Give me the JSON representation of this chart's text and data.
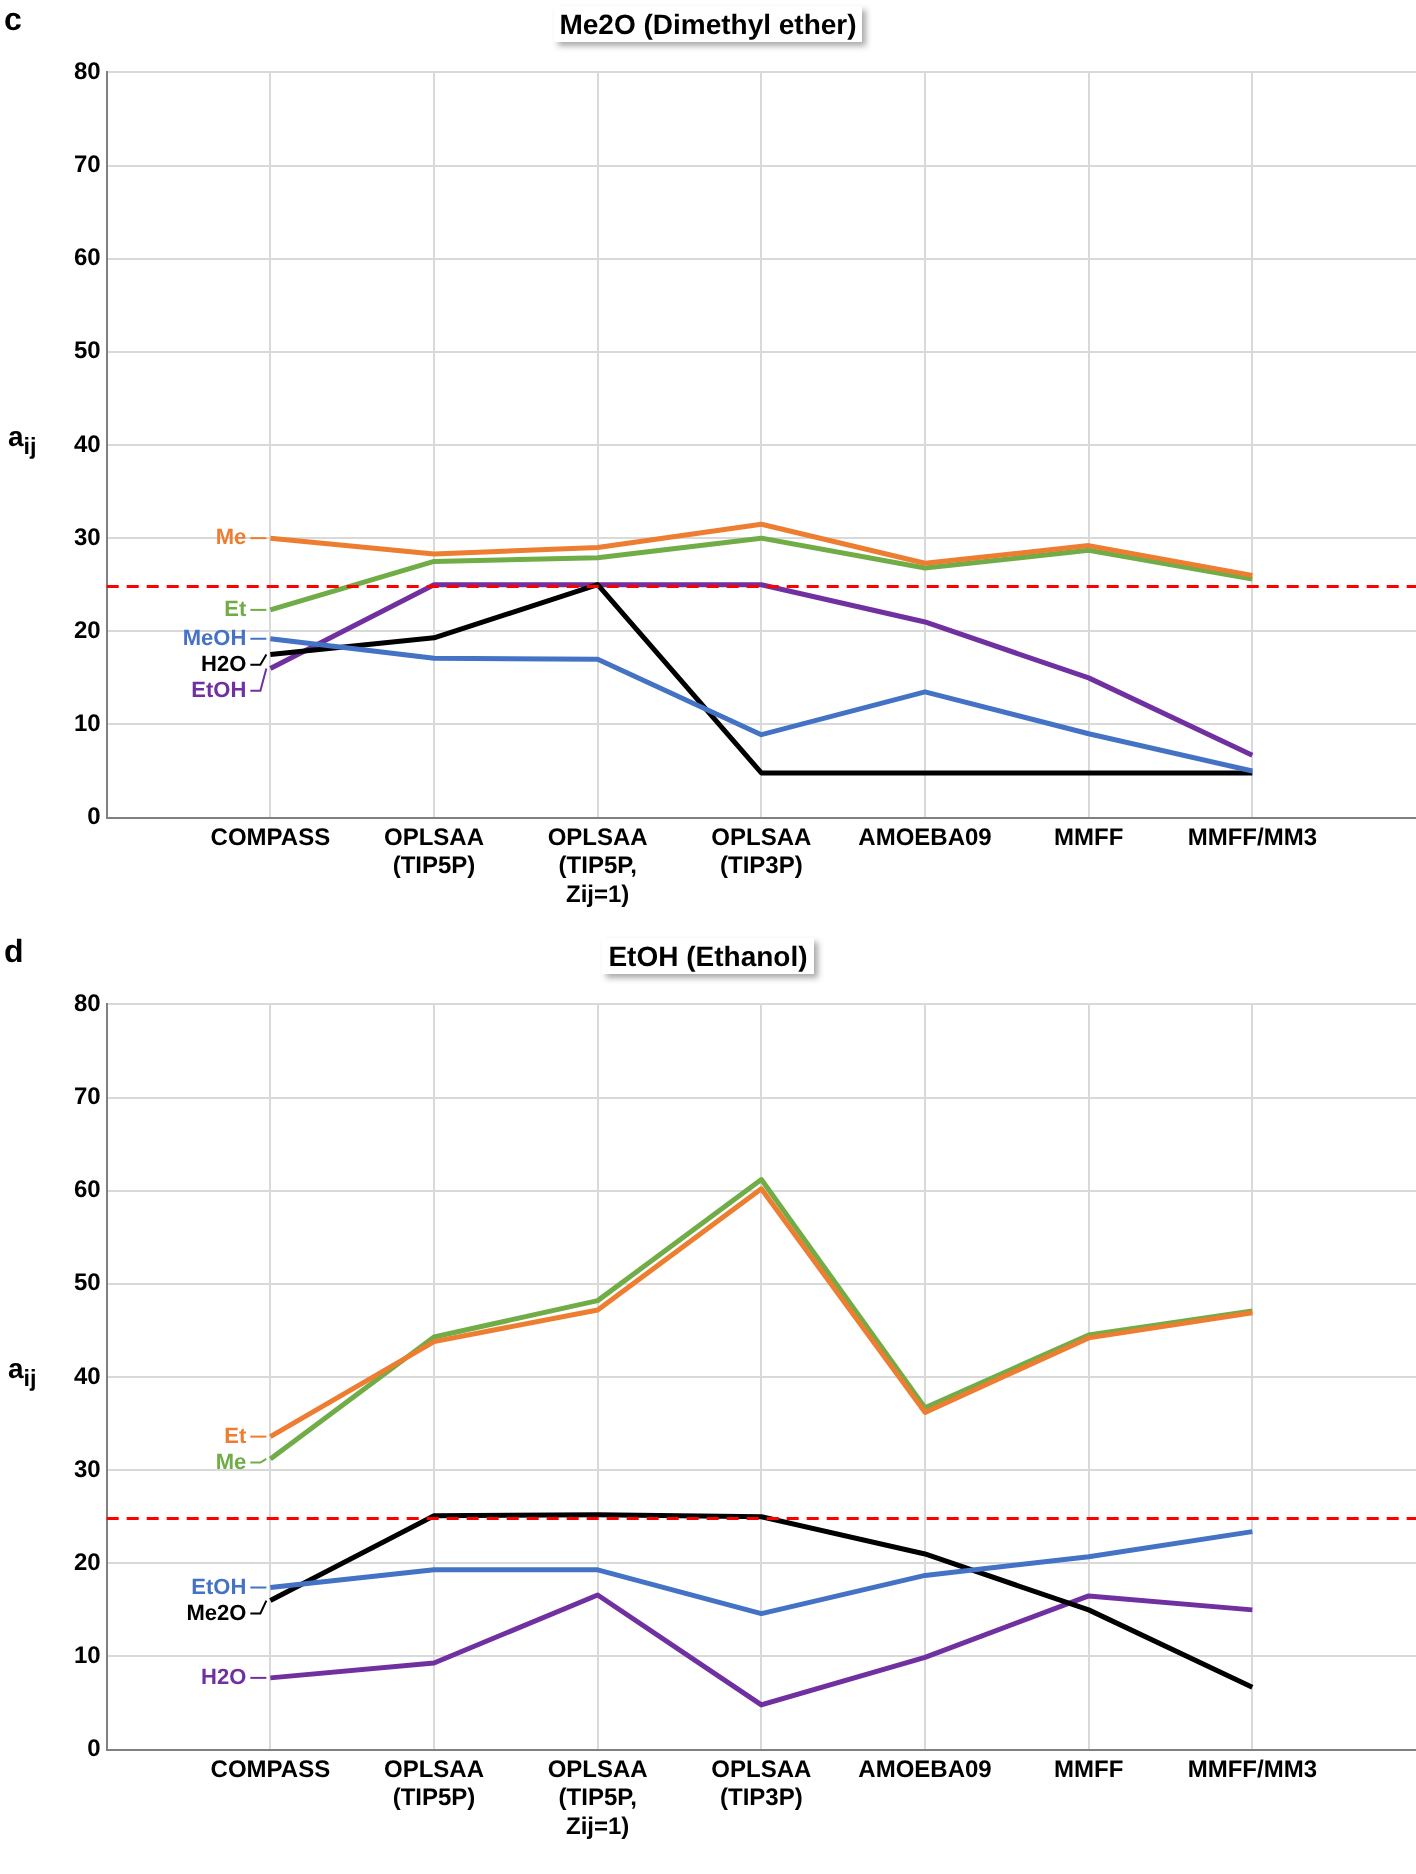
{
  "chart_data": [
    {
      "type": "line",
      "title": "Me2O (Dimethyl ether)",
      "ylabel": "a$_{ij}$",
      "annotations": [
        "c"
      ],
      "categories": [
        "COMPASS",
        "OPLSAA (TIP5P)",
        "OPLSAA (TIP5P, Zij=1)",
        "OPLSAA (TIP3P)",
        "AMOEBA09",
        "MMFF",
        "MMFF/MM3"
      ],
      "series": [
        {
          "name": "Me",
          "color": "#ed7d31",
          "values": [
            30,
            28.3,
            29,
            31.5,
            27.3,
            29.2,
            26
          ]
        },
        {
          "name": "Et",
          "color": "#70ad47",
          "values": [
            22.3,
            27.5,
            27.9,
            30,
            26.8,
            28.7,
            25.6
          ]
        },
        {
          "name": "MeOH",
          "color": "#4472c4",
          "values": [
            19.2,
            17.1,
            17,
            8.9,
            13.5,
            9,
            5
          ]
        },
        {
          "name": "H2O",
          "color": "#000000",
          "values": [
            17.5,
            19.3,
            25,
            4.8,
            4.8,
            4.8,
            4.8
          ]
        },
        {
          "name": "EtOH",
          "color": "#7030a0",
          "values": [
            16,
            25,
            25,
            25,
            21,
            15,
            6.7
          ]
        }
      ],
      "ylim": [
        0,
        80
      ],
      "yticks": [
        0,
        10,
        20,
        30,
        40,
        50,
        60,
        70,
        80
      ],
      "grid": true,
      "legend": "left",
      "marker": "none",
      "line_style": "solid",
      "ref_lines": [
        {
          "axis": "y",
          "value": 24.8,
          "color": "#ff0000",
          "line_style": "dashed"
        }
      ]
    },
    {
      "type": "line",
      "title": "EtOH (Ethanol)",
      "ylabel": "a$_{ij}$",
      "annotations": [
        "d"
      ],
      "categories": [
        "COMPASS",
        "OPLSAA (TIP5P)",
        "OPLSAA (TIP5P, Zij=1)",
        "OPLSAA (TIP3P)",
        "AMOEBA09",
        "MMFF",
        "MMFF/MM3"
      ],
      "series": [
        {
          "name": "Et",
          "color": "#ed7d31",
          "values": [
            33.6,
            43.8,
            47.2,
            60.2,
            36.2,
            44.2,
            46.9
          ]
        },
        {
          "name": "Me",
          "color": "#70ad47",
          "values": [
            31.2,
            44.3,
            48.2,
            61.2,
            36.7,
            44.5,
            47.1
          ]
        },
        {
          "name": "EtOH",
          "color": "#4472c4",
          "values": [
            17.4,
            19.3,
            19.3,
            14.6,
            18.7,
            20.7,
            23.4
          ]
        },
        {
          "name": "Me2O",
          "color": "#000000",
          "values": [
            16,
            25.1,
            25.2,
            25,
            21,
            15,
            6.7
          ]
        },
        {
          "name": "H2O",
          "color": "#7030a0",
          "values": [
            7.7,
            9.3,
            16.6,
            4.8,
            9.9,
            16.5,
            15
          ]
        }
      ],
      "ylim": [
        0,
        80
      ],
      "yticks": [
        0,
        10,
        20,
        30,
        40,
        50,
        60,
        70,
        80
      ],
      "grid": true,
      "legend": "left",
      "marker": "none",
      "line_style": "solid",
      "ref_lines": [
        {
          "axis": "y",
          "value": 24.8,
          "color": "#ff0000",
          "line_style": "dashed"
        }
      ]
    }
  ]
}
